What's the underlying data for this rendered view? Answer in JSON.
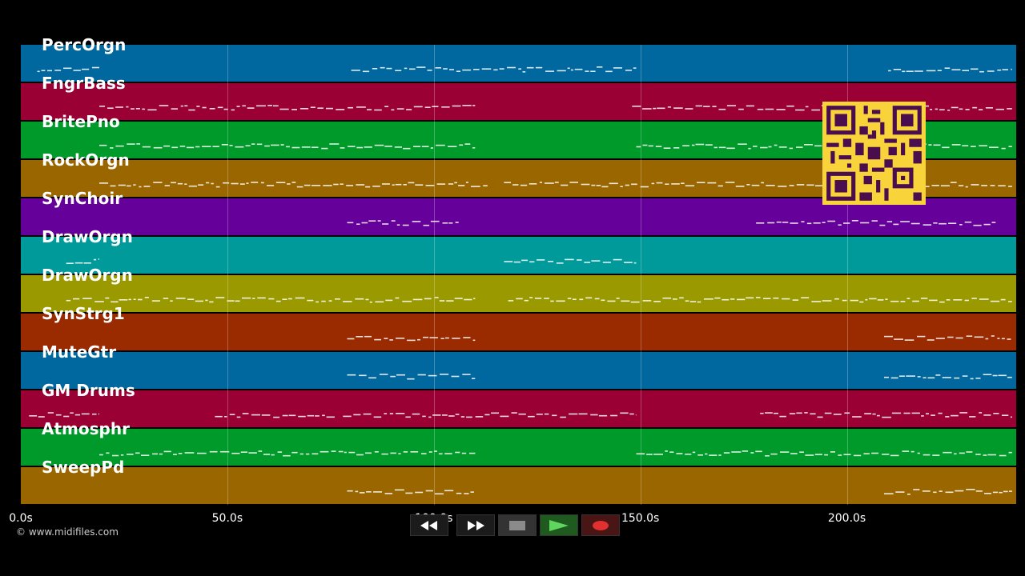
{
  "tracks": [
    {
      "name": "PercOrgn",
      "color": "#00689e"
    },
    {
      "name": "FngrBass",
      "color": "#9a0033"
    },
    {
      "name": "BritePno",
      "color": "#009a2a"
    },
    {
      "name": "RockOrgn",
      "color": "#9a6600"
    },
    {
      "name": "SynChoir",
      "color": "#66009a"
    },
    {
      "name": "DrawOrgn",
      "color": "#009a9a"
    },
    {
      "name": "DrawOrgn",
      "color": "#9a9a00"
    },
    {
      "name": "SynStrg1",
      "color": "#9a2a00"
    },
    {
      "name": "MuteGtr",
      "color": "#00689e"
    },
    {
      "name": "GM Drums",
      "color": "#9a0033"
    },
    {
      "name": "Atmosphr",
      "color": "#009a2a"
    },
    {
      "name": "SweepPd",
      "color": "#9a6600"
    }
  ],
  "timeline": {
    "ticks": [
      "0.0s",
      "50.0s",
      "100.0s",
      "150.0s",
      "200.0s"
    ],
    "tick_seconds": [
      0,
      50,
      100,
      150,
      200
    ],
    "max_seconds": 241
  },
  "note_regions": [
    [
      [
        4,
        19
      ],
      [
        80,
        149
      ],
      [
        210,
        240
      ]
    ],
    [
      [
        19,
        110
      ],
      [
        148,
        240
      ]
    ],
    [
      [
        19,
        110
      ],
      [
        149,
        240
      ]
    ],
    [
      [
        19,
        113
      ],
      [
        117,
        240
      ]
    ],
    [
      [
        79,
        106
      ],
      [
        178,
        236
      ]
    ],
    [
      [
        11,
        19
      ],
      [
        117,
        149
      ]
    ],
    [
      [
        11,
        110
      ],
      [
        118,
        240
      ]
    ],
    [
      [
        79,
        110
      ],
      [
        209,
        240
      ]
    ],
    [
      [
        79,
        110
      ],
      [
        209,
        240
      ]
    ],
    [
      [
        2,
        19
      ],
      [
        47,
        76
      ],
      [
        78,
        149
      ],
      [
        179,
        240
      ]
    ],
    [
      [
        19,
        110
      ],
      [
        149,
        240
      ]
    ],
    [
      [
        79,
        110
      ],
      [
        209,
        240
      ]
    ]
  ],
  "copyright": "© www.midifiles.com",
  "qr_label": "qr-code",
  "transport": {
    "rewind": "rewind-icon",
    "fast_forward": "fast-forward-icon",
    "stop": "stop-icon",
    "play": "play-icon",
    "record": "record-icon"
  }
}
